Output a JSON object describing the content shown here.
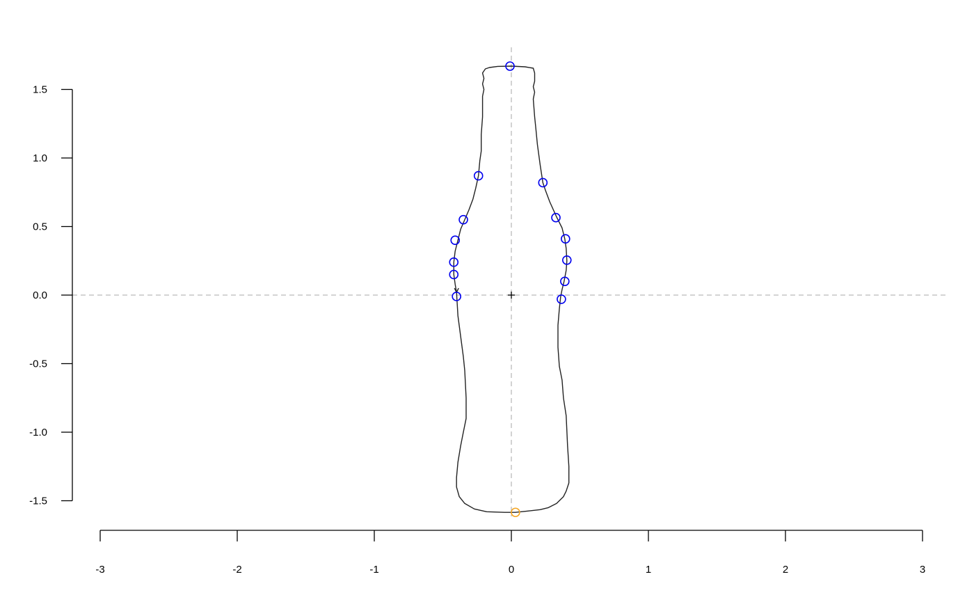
{
  "chart_data": {
    "type": "scatter",
    "title": "",
    "xlabel": "",
    "ylabel": "",
    "xlim": [
      -3,
      3
    ],
    "ylim": [
      -1.5,
      1.5
    ],
    "x_ticks": [
      -3,
      -2,
      -1,
      0,
      1,
      2,
      3
    ],
    "y_ticks": [
      -1.5,
      -1.0,
      -0.5,
      0.0,
      0.5,
      1.0,
      1.5
    ],
    "x_tick_labels": [
      "-3",
      "-2",
      "-1",
      "0",
      "1",
      "2",
      "3"
    ],
    "y_tick_labels": [
      "-1.5",
      "-1.0",
      "-0.5",
      "0.0",
      "0.5",
      "1.0",
      "1.5"
    ],
    "grid": false,
    "reference_lines": {
      "x": 0,
      "y": 0,
      "style": "dashed",
      "color": "#bbbbbb"
    },
    "centroid": [
      0,
      0
    ],
    "outline": [
      [
        -0.4,
        0.02
      ],
      [
        -0.39,
        -0.15
      ],
      [
        -0.37,
        -0.3
      ],
      [
        -0.35,
        -0.45
      ],
      [
        -0.34,
        -0.55
      ],
      [
        -0.33,
        -0.75
      ],
      [
        -0.33,
        -0.9
      ],
      [
        -0.35,
        -1.0
      ],
      [
        -0.37,
        -1.1
      ],
      [
        -0.39,
        -1.22
      ],
      [
        -0.4,
        -1.33
      ],
      [
        -0.4,
        -1.4
      ],
      [
        -0.38,
        -1.47
      ],
      [
        -0.34,
        -1.52
      ],
      [
        -0.27,
        -1.56
      ],
      [
        -0.18,
        -1.58
      ],
      [
        -0.05,
        -1.585
      ],
      [
        0.03,
        -1.585
      ],
      [
        0.12,
        -1.575
      ],
      [
        0.21,
        -1.565
      ],
      [
        0.27,
        -1.55
      ],
      [
        0.33,
        -1.52
      ],
      [
        0.38,
        -1.47
      ],
      [
        0.4,
        -1.43
      ],
      [
        0.42,
        -1.37
      ],
      [
        0.42,
        -1.25
      ],
      [
        0.41,
        -1.1
      ],
      [
        0.4,
        -0.88
      ],
      [
        0.38,
        -0.75
      ],
      [
        0.37,
        -0.62
      ],
      [
        0.35,
        -0.52
      ],
      [
        0.34,
        -0.38
      ],
      [
        0.34,
        -0.22
      ],
      [
        0.35,
        -0.1
      ],
      [
        0.36,
        -0.01
      ],
      [
        0.37,
        0.04
      ],
      [
        0.385,
        0.1
      ],
      [
        0.4,
        0.18
      ],
      [
        0.405,
        0.25
      ],
      [
        0.4,
        0.34
      ],
      [
        0.39,
        0.41
      ],
      [
        0.37,
        0.49
      ],
      [
        0.33,
        0.57
      ],
      [
        0.28,
        0.68
      ],
      [
        0.25,
        0.76
      ],
      [
        0.23,
        0.82
      ],
      [
        0.21,
        0.95
      ],
      [
        0.19,
        1.1
      ],
      [
        0.18,
        1.2
      ],
      [
        0.17,
        1.3
      ],
      [
        0.16,
        1.43
      ],
      [
        0.17,
        1.48
      ],
      [
        0.16,
        1.52
      ],
      [
        0.17,
        1.56
      ],
      [
        0.17,
        1.62
      ],
      [
        0.16,
        1.655
      ],
      [
        0.1,
        1.665
      ],
      [
        0.0,
        1.67
      ],
      [
        -0.1,
        1.668
      ],
      [
        -0.16,
        1.66
      ],
      [
        -0.19,
        1.65
      ],
      [
        -0.21,
        1.62
      ],
      [
        -0.2,
        1.58
      ],
      [
        -0.21,
        1.54
      ],
      [
        -0.2,
        1.5
      ],
      [
        -0.21,
        1.45
      ],
      [
        -0.21,
        1.3
      ],
      [
        -0.22,
        1.17
      ],
      [
        -0.22,
        1.05
      ],
      [
        -0.23,
        0.98
      ],
      [
        -0.24,
        0.87
      ],
      [
        -0.26,
        0.78
      ],
      [
        -0.28,
        0.7
      ],
      [
        -0.31,
        0.62
      ],
      [
        -0.34,
        0.55
      ],
      [
        -0.37,
        0.48
      ],
      [
        -0.39,
        0.4
      ],
      [
        -0.41,
        0.32
      ],
      [
        -0.42,
        0.24
      ],
      [
        -0.42,
        0.15
      ],
      [
        -0.41,
        0.08
      ],
      [
        -0.4,
        0.02
      ]
    ],
    "series": [
      {
        "color": "#0000ee",
        "marker": "open-circle",
        "points": [
          [
            -0.01,
            1.67
          ],
          [
            -0.24,
            0.87
          ],
          [
            -0.35,
            0.55
          ],
          [
            -0.41,
            0.4
          ],
          [
            -0.42,
            0.24
          ],
          [
            -0.42,
            0.15
          ],
          [
            -0.4,
            -0.01
          ],
          [
            0.23,
            0.82
          ],
          [
            0.325,
            0.565
          ],
          [
            0.395,
            0.41
          ],
          [
            0.405,
            0.255
          ],
          [
            0.39,
            0.1
          ],
          [
            0.365,
            -0.03
          ]
        ]
      },
      {
        "color": "#f5a623",
        "marker": "open-circle",
        "points": [
          [
            0.03,
            -1.585
          ]
        ]
      }
    ]
  }
}
